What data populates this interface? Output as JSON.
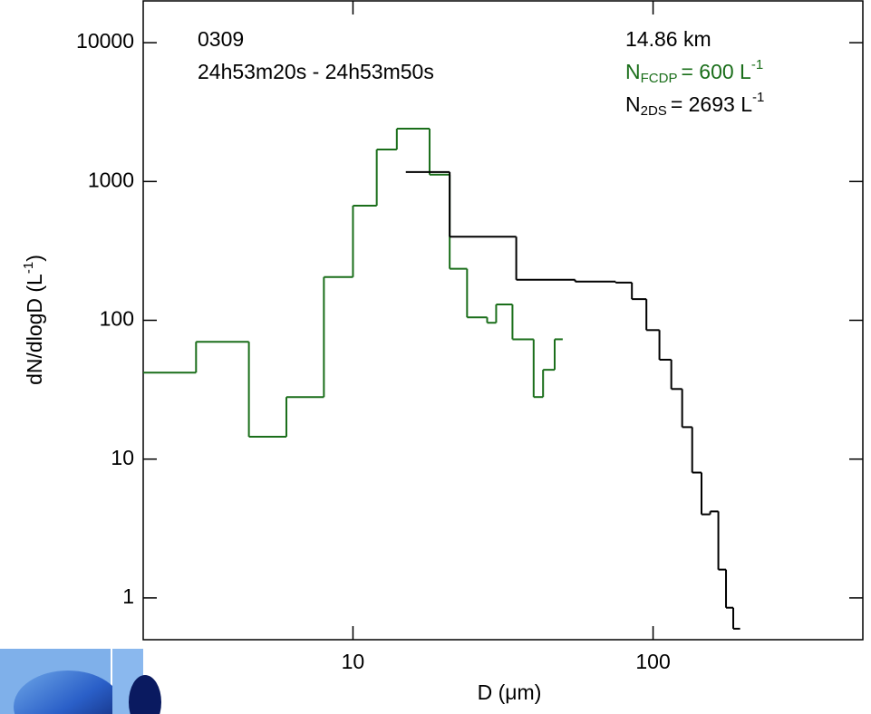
{
  "chart_data": {
    "type": "step",
    "x_label": "D (μm)",
    "y_label": {
      "text": "dN/dlogD (L",
      "sup": "-1",
      "close": ")"
    },
    "xlim": [
      2,
      500
    ],
    "ylim": [
      0.5,
      20000
    ],
    "log_x": true,
    "log_y": true,
    "xticks": [
      10,
      100
    ],
    "yticks": [
      1,
      10,
      100,
      1000,
      10000
    ],
    "annotations": {
      "flight": "0309",
      "time": "24h53m20s - 24h53m50s",
      "altitude": "14.86 km"
    },
    "series": [
      {
        "name": "FCDP",
        "prefix": "N",
        "count_text": "=   600 L",
        "unit_sup": "-1",
        "color": "#1a6e1a",
        "bins": [
          2,
          3,
          4.5,
          6,
          8,
          10,
          12,
          14,
          18,
          21,
          24,
          28,
          30,
          34,
          40,
          43,
          47,
          50
        ],
        "values": [
          42,
          70,
          14.5,
          28,
          205,
          670,
          1700,
          2400,
          1120,
          235,
          105,
          96,
          130,
          73,
          28,
          44,
          73
        ]
      },
      {
        "name": "2DS",
        "prefix": "N",
        "count_text": "=  2693 L",
        "unit_sup": "-1",
        "color": "#000000",
        "bins": [
          15,
          21,
          35,
          55,
          75,
          85,
          95,
          105,
          115,
          125,
          135,
          145,
          155,
          165,
          175,
          185,
          195
        ],
        "values": [
          1170,
          400,
          196,
          190,
          187,
          142,
          85,
          52,
          32,
          17,
          8,
          4,
          4.2,
          1.6,
          0.85,
          0.6
        ]
      }
    ]
  }
}
